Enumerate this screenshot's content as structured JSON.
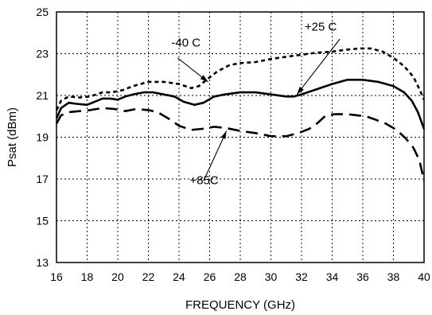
{
  "chart_data": {
    "type": "line",
    "title": "",
    "xlabel": "FREQUENCY (GHz)",
    "ylabel": "Psat (dBm)",
    "xlim": [
      16,
      40
    ],
    "ylim": [
      13,
      25
    ],
    "xticks": [
      16,
      18,
      20,
      22,
      24,
      26,
      28,
      30,
      32,
      34,
      36,
      38,
      40
    ],
    "yticks": [
      13,
      15,
      17,
      19,
      21,
      23,
      25
    ],
    "grid": true,
    "legend": "none",
    "series": [
      {
        "name": "-40 C",
        "style": "short-dash",
        "points": [
          [
            16.0,
            20.3
          ],
          [
            16.3,
            20.75
          ],
          [
            16.8,
            20.95
          ],
          [
            17.5,
            20.9
          ],
          [
            18.2,
            20.95
          ],
          [
            19.0,
            21.15
          ],
          [
            19.6,
            21.15
          ],
          [
            20.3,
            21.25
          ],
          [
            21.0,
            21.45
          ],
          [
            22.0,
            21.65
          ],
          [
            23.0,
            21.65
          ],
          [
            24.0,
            21.55
          ],
          [
            24.8,
            21.35
          ],
          [
            25.3,
            21.45
          ],
          [
            25.8,
            21.75
          ],
          [
            26.5,
            22.15
          ],
          [
            27.3,
            22.45
          ],
          [
            28.0,
            22.55
          ],
          [
            29.0,
            22.6
          ],
          [
            30.0,
            22.75
          ],
          [
            31.0,
            22.85
          ],
          [
            32.0,
            22.95
          ],
          [
            33.0,
            23.05
          ],
          [
            34.0,
            23.1
          ],
          [
            35.0,
            23.2
          ],
          [
            35.8,
            23.25
          ],
          [
            36.5,
            23.25
          ],
          [
            37.3,
            23.1
          ],
          [
            38.0,
            22.8
          ],
          [
            38.7,
            22.4
          ],
          [
            39.3,
            21.9
          ],
          [
            39.7,
            21.3
          ],
          [
            40.0,
            20.8
          ]
        ]
      },
      {
        "name": "+25 C",
        "style": "solid",
        "points": [
          [
            16.0,
            19.9
          ],
          [
            16.3,
            20.4
          ],
          [
            16.8,
            20.65
          ],
          [
            17.3,
            20.6
          ],
          [
            18.0,
            20.55
          ],
          [
            18.5,
            20.7
          ],
          [
            19.0,
            20.85
          ],
          [
            19.5,
            20.85
          ],
          [
            20.0,
            20.8
          ],
          [
            20.5,
            20.95
          ],
          [
            21.0,
            21.05
          ],
          [
            21.7,
            21.15
          ],
          [
            22.3,
            21.15
          ],
          [
            23.0,
            21.05
          ],
          [
            23.7,
            20.95
          ],
          [
            24.3,
            20.7
          ],
          [
            25.0,
            20.55
          ],
          [
            25.6,
            20.65
          ],
          [
            26.3,
            20.95
          ],
          [
            27.0,
            21.05
          ],
          [
            28.0,
            21.15
          ],
          [
            29.0,
            21.15
          ],
          [
            30.0,
            21.05
          ],
          [
            31.0,
            20.95
          ],
          [
            31.5,
            20.95
          ],
          [
            32.0,
            21.05
          ],
          [
            33.0,
            21.3
          ],
          [
            34.0,
            21.55
          ],
          [
            35.0,
            21.75
          ],
          [
            36.0,
            21.75
          ],
          [
            37.0,
            21.65
          ],
          [
            38.0,
            21.45
          ],
          [
            38.7,
            21.15
          ],
          [
            39.2,
            20.75
          ],
          [
            39.6,
            20.2
          ],
          [
            40.0,
            19.4
          ]
        ]
      },
      {
        "name": "+85C",
        "style": "long-dash",
        "points": [
          [
            16.0,
            19.65
          ],
          [
            16.3,
            20.05
          ],
          [
            16.8,
            20.2
          ],
          [
            17.5,
            20.25
          ],
          [
            18.2,
            20.3
          ],
          [
            19.0,
            20.4
          ],
          [
            19.8,
            20.35
          ],
          [
            20.5,
            20.25
          ],
          [
            21.2,
            20.35
          ],
          [
            22.0,
            20.3
          ],
          [
            22.6,
            20.2
          ],
          [
            23.3,
            19.9
          ],
          [
            24.0,
            19.55
          ],
          [
            24.8,
            19.35
          ],
          [
            25.5,
            19.4
          ],
          [
            26.3,
            19.5
          ],
          [
            27.0,
            19.45
          ],
          [
            28.0,
            19.3
          ],
          [
            29.0,
            19.2
          ],
          [
            30.0,
            19.05
          ],
          [
            31.0,
            19.05
          ],
          [
            31.8,
            19.2
          ],
          [
            32.5,
            19.4
          ],
          [
            33.0,
            19.65
          ],
          [
            33.6,
            20.05
          ],
          [
            34.2,
            20.1
          ],
          [
            35.0,
            20.1
          ],
          [
            35.6,
            20.05
          ],
          [
            36.2,
            20.0
          ],
          [
            36.8,
            19.85
          ],
          [
            37.5,
            19.65
          ],
          [
            38.2,
            19.35
          ],
          [
            38.8,
            18.95
          ],
          [
            39.3,
            18.5
          ],
          [
            39.7,
            17.9
          ],
          [
            40.0,
            16.9
          ]
        ]
      }
    ],
    "annotations": [
      {
        "text": "-40 C",
        "label_at": [
          23.5,
          23.35
        ],
        "arrow_from": [
          23.9,
          22.8
        ],
        "arrow_to": [
          25.9,
          21.65
        ]
      },
      {
        "text": "+25 C",
        "label_at": [
          32.2,
          24.1
        ],
        "arrow_from": [
          34.5,
          23.7
        ],
        "arrow_to": [
          31.7,
          21.05
        ]
      },
      {
        "text": "+85C",
        "label_at": [
          24.7,
          16.75
        ],
        "arrow_from": [
          25.6,
          16.9
        ],
        "arrow_to": [
          27.1,
          19.3
        ]
      }
    ]
  }
}
